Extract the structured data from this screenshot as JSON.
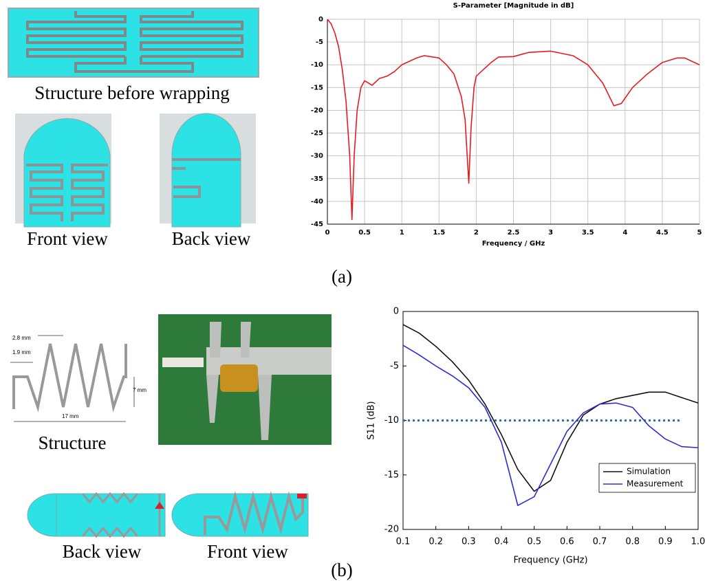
{
  "chart_data": [
    {
      "type": "line",
      "title": "S-Parameter [Magnitude in dB]",
      "x_label": "Frequency / GHz",
      "x": [
        0,
        0.05,
        0.1,
        0.15,
        0.2,
        0.25,
        0.3,
        0.33,
        0.36,
        0.4,
        0.45,
        0.5,
        0.55,
        0.6,
        0.7,
        0.8,
        0.9,
        1.0,
        1.2,
        1.3,
        1.5,
        1.6,
        1.7,
        1.8,
        1.85,
        1.9,
        1.93,
        1.97,
        2.0,
        2.1,
        2.2,
        2.3,
        2.5,
        2.7,
        3.0,
        3.3,
        3.5,
        3.7,
        3.85,
        3.95,
        4.1,
        4.3,
        4.5,
        4.7,
        4.8,
        5.0
      ],
      "values": [
        0,
        -1,
        -3,
        -6,
        -11,
        -18,
        -30,
        -44,
        -30,
        -20,
        -15,
        -13.5,
        -14,
        -14.5,
        -13,
        -12.5,
        -11.5,
        -10,
        -8.5,
        -8,
        -8.5,
        -10,
        -12,
        -17,
        -22,
        -36,
        -24,
        -15,
        -12.5,
        -11,
        -9.5,
        -8.3,
        -8.2,
        -7.3,
        -7,
        -8,
        -10,
        -14,
        -19,
        -18.5,
        -15,
        -12,
        -9.5,
        -8.5,
        -8.5,
        -10
      ],
      "color": "#e8191e",
      "xlim": [
        0,
        5
      ],
      "ylim": [
        -45,
        0
      ],
      "xticks": [
        0,
        0.5,
        1,
        1.5,
        2,
        2.5,
        3,
        3.5,
        4,
        4.5,
        5
      ],
      "yticks": [
        0,
        -5,
        -10,
        -15,
        -20,
        -25,
        -30,
        -35,
        -40,
        -45
      ],
      "grid": true
    },
    {
      "type": "line",
      "x_label": "Frequency (GHz)",
      "y_label": "S11 (dB)",
      "x": [
        0.1,
        0.15,
        0.2,
        0.25,
        0.3,
        0.35,
        0.4,
        0.45,
        0.5,
        0.55,
        0.6,
        0.65,
        0.7,
        0.75,
        0.8,
        0.85,
        0.9,
        0.95,
        1.0
      ],
      "series": [
        {
          "name": "Simulation",
          "color": "#111111",
          "values": [
            -1.2,
            -2,
            -3.2,
            -4.6,
            -6.3,
            -8.5,
            -11.3,
            -14.5,
            -16.5,
            -15.5,
            -12,
            -9.5,
            -8.5,
            -8,
            -7.7,
            -7.4,
            -7.4,
            -7.9,
            -8.4
          ]
        },
        {
          "name": "Measurement",
          "color": "#2b2bd6",
          "values": [
            -3.1,
            -4,
            -5,
            -5.9,
            -7,
            -8.8,
            -12,
            -17.8,
            -17,
            -14,
            -11,
            -9.3,
            -8.5,
            -8.4,
            -8.8,
            -10.5,
            -11.7,
            -12.4,
            -12.5
          ]
        }
      ],
      "xlim": [
        0.1,
        1.0
      ],
      "ylim": [
        -20,
        0
      ],
      "xticks": [
        0.1,
        0.2,
        0.3,
        0.4,
        0.5,
        0.6,
        0.7,
        0.8,
        0.9,
        {
          "value": 1,
          "label": "1.0"
        }
      ],
      "yticks": [
        0,
        -5,
        -10,
        -15,
        -20
      ],
      "grid": false,
      "legend": "lower right",
      "reference_line": {
        "y": -10,
        "x": [
          0.1,
          0.95
        ],
        "color": "#2e6db4"
      }
    }
  ],
  "illustrations": {
    "a": {
      "caption": "(a)",
      "labels": [
        "Structure before wrapping",
        "Front view",
        "Back view"
      ]
    },
    "b": {
      "caption": "(b)",
      "labels": [
        "Structure",
        "Back view",
        "Front view"
      ],
      "dimensions": [
        "2.8 mm",
        "1.9 mm",
        "7 mm",
        "17 mm"
      ]
    }
  }
}
